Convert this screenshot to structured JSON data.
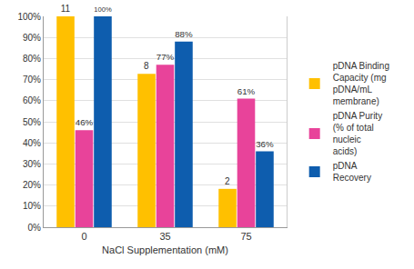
{
  "chart_data": {
    "type": "bar",
    "x_label": "NaCl Supplementation (mM)",
    "categories": [
      "0",
      "35",
      "75"
    ],
    "series": [
      {
        "name": "pDNA Binding Capacity (mg pDNA/mL membrane)",
        "color": "#FFC000",
        "values": [
          11,
          8,
          2
        ],
        "axis": "y2"
      },
      {
        "name": "pDNA Purity (% of total nucleic acids)",
        "color": "#E8439A",
        "values": [
          46,
          77,
          61
        ],
        "value_labels": [
          "46%",
          "77%",
          "61%"
        ]
      },
      {
        "name": "pDNA Recovery",
        "color": "#0E5DAE",
        "values": [
          100,
          88,
          36
        ],
        "value_labels": [
          "100%",
          "88%",
          "36%"
        ]
      }
    ],
    "ylim": [
      0,
      100
    ],
    "yticks": [
      {
        "value": 0,
        "label": "0%"
      },
      {
        "value": 10,
        "label": "10%"
      },
      {
        "value": 20,
        "label": "20%"
      },
      {
        "value": 30,
        "label": "30%"
      },
      {
        "value": 40,
        "label": "40%"
      },
      {
        "value": 50,
        "label": "50%"
      },
      {
        "value": 60,
        "label": "60%"
      },
      {
        "value": 70,
        "label": "70%"
      },
      {
        "value": 80,
        "label": "80%"
      },
      {
        "value": 90,
        "label": "90%"
      },
      {
        "value": 100,
        "label": "100%"
      }
    ],
    "y2lim": [
      0,
      11
    ],
    "y2ticks": [],
    "grid": true,
    "legend": "right",
    "data_labels": true
  }
}
